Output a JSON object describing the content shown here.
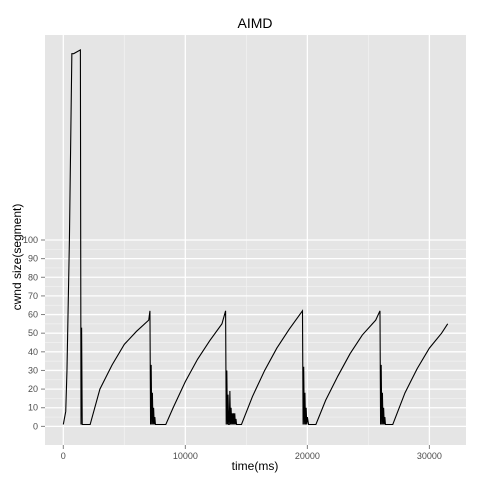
{
  "chart_data": {
    "type": "line",
    "title": "AIMD",
    "xlabel": "time(ms)",
    "ylabel": "cwnd size(segment)",
    "xlim": [
      -1500,
      33000
    ],
    "ylim": [
      -10,
      210
    ],
    "x_ticks": [
      0,
      10000,
      20000,
      30000
    ],
    "x_tick_labels": [
      "0",
      "10000",
      "20000",
      "30000"
    ],
    "y_ticks": [
      0,
      10,
      20,
      30,
      40,
      50,
      60,
      70,
      80,
      90,
      100
    ],
    "y_tick_labels": [
      "0",
      "10",
      "20",
      "30",
      "40",
      "50",
      "60",
      "70",
      "80",
      "90",
      "100"
    ],
    "grid": true,
    "colors": {
      "panel": "#e5e5e5",
      "grid_major": "#ffffff",
      "grid_minor": "#f2f2f2",
      "line": "#000000"
    },
    "series": [
      {
        "x": [
          0,
          200,
          300,
          500,
          700,
          850,
          1400,
          1450,
          1500,
          1550,
          1600,
          1650,
          1700,
          2200,
          3000,
          4000,
          5000,
          6000,
          7000,
          7100,
          7150,
          7200,
          7250,
          7300,
          7350,
          7400,
          7450,
          7500,
          7550,
          7700,
          8400,
          9000,
          10000,
          11000,
          12000,
          13000,
          13300,
          13350,
          13400,
          13450,
          13500,
          13550,
          13600,
          13650,
          13700,
          13750,
          13800,
          13850,
          13900,
          13950,
          14000,
          14050,
          14100,
          14150,
          14200,
          14250,
          14600,
          15500,
          16500,
          17500,
          18500,
          19600,
          19650,
          19700,
          19750,
          19800,
          19850,
          19900,
          19950,
          20000,
          20100,
          20700,
          21500,
          22500,
          23500,
          24500,
          25600,
          25950,
          26000,
          26050,
          26100,
          26150,
          26200,
          26250,
          26300,
          26350,
          26400,
          26500,
          26800,
          27000,
          28000,
          29000,
          30000,
          31000,
          31500
        ],
        "y": [
          1,
          8,
          30,
          100,
          200,
          200,
          202,
          1,
          53,
          1,
          1,
          1,
          1,
          1,
          20,
          33,
          44,
          51,
          57,
          62,
          1,
          33,
          1,
          18,
          1,
          10,
          1,
          5,
          1,
          1,
          1,
          10,
          24,
          36,
          46,
          55,
          62,
          1,
          30,
          1,
          17,
          1,
          1,
          19,
          1,
          10,
          1,
          7,
          1,
          7,
          1,
          7,
          1,
          4,
          1,
          1,
          1,
          16,
          30,
          42,
          52,
          62,
          1,
          32,
          1,
          18,
          1,
          10,
          1,
          5,
          1,
          1,
          14,
          27,
          39,
          49,
          57,
          62,
          1,
          33,
          1,
          18,
          1,
          10,
          1,
          5,
          1,
          1,
          1,
          1,
          18,
          31,
          42,
          50,
          55
        ]
      }
    ]
  }
}
